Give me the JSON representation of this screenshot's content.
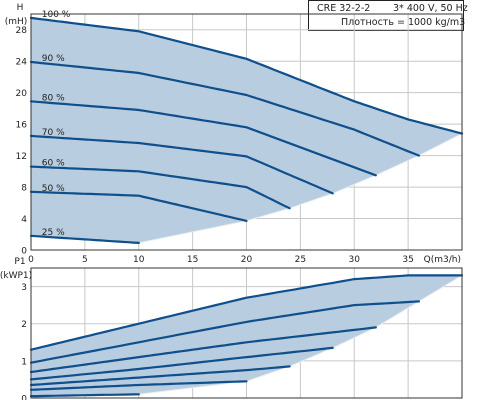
{
  "header": {
    "model": "CRE 32-2-2",
    "supply": "3* 400 V, 50 Hz",
    "density": "Плотность = 1000 kg/m3"
  },
  "colors": {
    "curve": "#0f4f8c",
    "fill": "#b9cde0",
    "grid": "#c8c8c8",
    "frame": "#333333",
    "text": "#222222"
  },
  "chart_data": [
    {
      "type": "line",
      "ylabel_top": "H",
      "ylabel_bottom": "(mH)",
      "xlabel": "Q(m3/h)",
      "xlim": [
        0,
        40
      ],
      "ylim": [
        0,
        30
      ],
      "x_ticks": [
        "0",
        "5",
        "10",
        "15",
        "20",
        "25",
        "30",
        "35"
      ],
      "y_ticks": [
        "0",
        "4",
        "8",
        "12",
        "16",
        "20",
        "24",
        "28"
      ],
      "grid": true,
      "series": [
        {
          "name": "100 %",
          "x": [
            0,
            10,
            20,
            30,
            35,
            40
          ],
          "y": [
            29.5,
            27.8,
            24.3,
            18.9,
            16.6,
            14.8
          ]
        },
        {
          "name": "90 %",
          "x": [
            0,
            10,
            20,
            30,
            36
          ],
          "y": [
            23.9,
            22.5,
            19.7,
            15.3,
            12.0
          ]
        },
        {
          "name": "80 %",
          "x": [
            0,
            10,
            20,
            32
          ],
          "y": [
            18.9,
            17.8,
            15.6,
            9.5
          ]
        },
        {
          "name": "70 %",
          "x": [
            0,
            10,
            20,
            28
          ],
          "y": [
            14.5,
            13.6,
            11.9,
            7.2
          ]
        },
        {
          "name": "60 %",
          "x": [
            0,
            10,
            20,
            24
          ],
          "y": [
            10.6,
            10.0,
            8.0,
            5.3
          ]
        },
        {
          "name": "50 %",
          "x": [
            0,
            10,
            20
          ],
          "y": [
            7.4,
            6.9,
            3.7
          ]
        },
        {
          "name": "25 %",
          "x": [
            0,
            10
          ],
          "y": [
            1.8,
            0.9
          ]
        }
      ]
    },
    {
      "type": "line",
      "ylabel_top": "P1",
      "ylabel_bottom": "(kWP1)",
      "xlim": [
        0,
        40
      ],
      "ylim": [
        0,
        3.5
      ],
      "y_ticks": [
        "0",
        "1",
        "2",
        "3"
      ],
      "grid": true,
      "series": [
        {
          "name": "100 %",
          "x": [
            0,
            10,
            20,
            30,
            35,
            40
          ],
          "y": [
            1.3,
            2.0,
            2.7,
            3.2,
            3.3,
            3.3
          ]
        },
        {
          "name": "90 %",
          "x": [
            0,
            10,
            20,
            30,
            36
          ],
          "y": [
            0.95,
            1.5,
            2.05,
            2.5,
            2.6
          ]
        },
        {
          "name": "80 %",
          "x": [
            0,
            10,
            20,
            32
          ],
          "y": [
            0.7,
            1.1,
            1.5,
            1.9
          ]
        },
        {
          "name": "70 %",
          "x": [
            0,
            10,
            20,
            28
          ],
          "y": [
            0.5,
            0.78,
            1.1,
            1.35
          ]
        },
        {
          "name": "60 %",
          "x": [
            0,
            10,
            20,
            24
          ],
          "y": [
            0.35,
            0.55,
            0.75,
            0.85
          ]
        },
        {
          "name": "50 %",
          "x": [
            0,
            10,
            20
          ],
          "y": [
            0.22,
            0.35,
            0.45
          ]
        },
        {
          "name": "25 %",
          "x": [
            0,
            10
          ],
          "y": [
            0.05,
            0.1
          ]
        }
      ]
    }
  ]
}
